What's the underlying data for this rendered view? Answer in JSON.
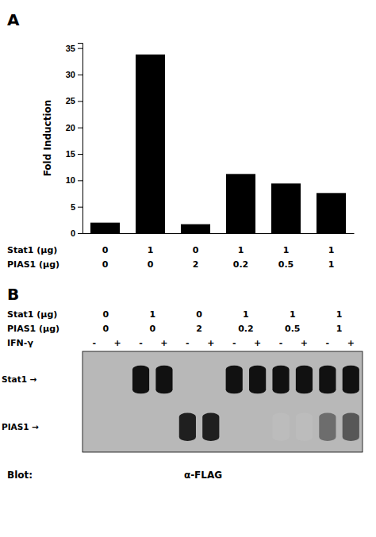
{
  "chart_data": [
    {
      "type": "bar",
      "title": "A",
      "ylabel": "Fold Induction",
      "categories": [
        null,
        null,
        null,
        null,
        null,
        null
      ],
      "values": [
        2.0,
        33.8,
        1.7,
        11.2,
        9.4,
        7.6
      ],
      "color": "#000000",
      "ylim": [
        0,
        36
      ],
      "yticks": [
        0,
        5,
        10,
        15,
        20,
        25,
        30,
        35
      ],
      "table": [
        {
          "name": "Stat1 (μg)",
          "values": [
            "0",
            "1",
            "0",
            "1",
            "1",
            "1"
          ]
        },
        {
          "name": "PIAS1 (μg)",
          "values": [
            "0",
            "0",
            "2",
            "0.2",
            "0.5",
            "1"
          ]
        }
      ]
    },
    {
      "type": "blot",
      "title": "B",
      "table": [
        {
          "name": "Stat1 (μg)",
          "values": [
            "0",
            "1",
            "0",
            "1",
            "1",
            "1"
          ]
        },
        {
          "name": "PIAS1 (μg)",
          "values": [
            "0",
            "0",
            "2",
            "0.2",
            "0.5",
            "1"
          ]
        },
        {
          "name": "IFN-γ",
          "values": [
            "-",
            "+",
            "-",
            "+",
            "-",
            "+",
            "-",
            "+",
            "-",
            "+",
            "-",
            "+"
          ]
        }
      ],
      "series": [
        {
          "name": "Stat1 →",
          "color": "#111111",
          "values": [
            0,
            0,
            1,
            1,
            0,
            0,
            1,
            1,
            1,
            1,
            1,
            1
          ]
        },
        {
          "name": "PIAS1 →",
          "values": [
            0,
            0,
            0,
            0,
            1,
            1,
            0,
            0,
            1,
            1,
            1,
            1
          ],
          "intensity": [
            0,
            0,
            0,
            0,
            1.0,
            1.0,
            0,
            0,
            0.3,
            0.3,
            0.65,
            0.75
          ]
        }
      ],
      "color": "#b8b8b8",
      "annotations": [
        "Blot:",
        "α-FLAG"
      ]
    }
  ]
}
